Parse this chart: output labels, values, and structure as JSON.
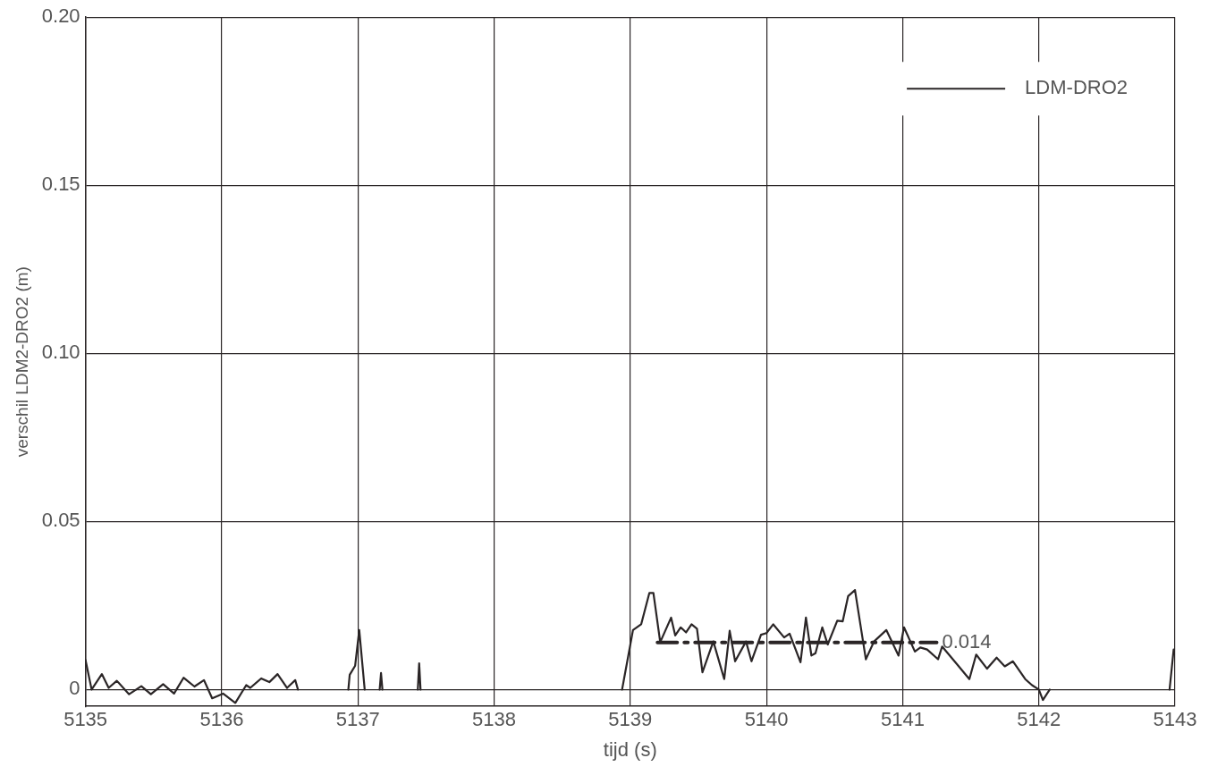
{
  "chart_data": {
    "type": "line",
    "xlabel": "tijd (s)",
    "ylabel": "verschil LDM2-DRO2 (m)",
    "xlim": [
      5135,
      5143
    ],
    "xticks": [
      5135,
      5136,
      5137,
      5138,
      5139,
      5140,
      5141,
      5142,
      5143
    ],
    "ylim": [
      -0.005,
      0.2
    ],
    "yticks": [
      0,
      0.05,
      {
        "value": 0.1,
        "label": "0.10"
      },
      0.15,
      {
        "value": 0.2,
        "label": "0.20"
      }
    ],
    "grid": true,
    "legend": "top right",
    "marker": "none",
    "series": [
      {
        "name": "LDM-DRO2",
        "color": "#2a2526",
        "line_style": "solid",
        "x": [
          5135.0,
          5135.045,
          5135.12,
          5135.17,
          5135.23,
          5135.32,
          5135.41,
          5135.48,
          5135.57,
          5135.65,
          5135.72,
          5135.8,
          5135.87,
          5135.93,
          5136.01,
          5136.1,
          5136.18,
          5136.21,
          5136.29,
          5136.35,
          5136.41,
          5136.48,
          5136.54,
          5136.56,
          5136.75,
          5136.93,
          5136.94,
          5136.98,
          5137.01,
          5137.05,
          5137.1,
          5137.16,
          5137.17,
          5137.18,
          5137.3,
          5137.44,
          5137.45,
          5137.46,
          5138.2,
          5138.94,
          5139.02,
          5139.08,
          5139.14,
          5139.17,
          5139.22,
          5139.3,
          5139.33,
          5139.37,
          5139.41,
          5139.45,
          5139.49,
          5139.53,
          5139.61,
          5139.69,
          5139.73,
          5139.77,
          5139.85,
          5139.89,
          5139.96,
          5140.0,
          5140.05,
          5140.13,
          5140.17,
          5140.25,
          5140.29,
          5140.33,
          5140.36,
          5140.41,
          5140.45,
          5140.52,
          5140.56,
          5140.6,
          5140.65,
          5140.73,
          5140.79,
          5140.88,
          5140.97,
          5141.01,
          5141.09,
          5141.13,
          5141.18,
          5141.26,
          5141.29,
          5141.4,
          5141.49,
          5141.54,
          5141.62,
          5141.69,
          5141.75,
          5141.81,
          5141.9,
          5141.95,
          5142.0,
          5142.03,
          5142.08,
          5142.5,
          5142.96,
          5142.99
        ],
        "values": [
          0.0088,
          0,
          0.0046,
          0.0005,
          0.0026,
          -0.0014,
          0.001,
          -0.0014,
          0.0016,
          -0.0012,
          0.0035,
          0.0009,
          0.0028,
          -0.0026,
          -0.0012,
          -0.004,
          0.0013,
          0.0005,
          0.0033,
          0.0022,
          0.0046,
          0.0005,
          0.0028,
          0,
          null,
          0,
          0.0044,
          0.0071,
          0.0177,
          0,
          null,
          0,
          0.0049,
          0,
          null,
          0,
          0.0078,
          0,
          null,
          0,
          0.0177,
          0.0194,
          0.0287,
          0.0287,
          0.0141,
          0.0214,
          0.0161,
          0.0185,
          0.017,
          0.0194,
          0.0181,
          0.0051,
          0.0143,
          0.0031,
          0.0175,
          0.0084,
          0.0143,
          0.0084,
          0.0163,
          0.0168,
          0.0194,
          0.0155,
          0.0166,
          0.0081,
          0.0214,
          0.0101,
          0.0108,
          0.0185,
          0.0134,
          0.0205,
          0.0203,
          0.0278,
          0.0296,
          0.009,
          0.0143,
          0.0177,
          0.0101,
          0.0185,
          0.0113,
          0.0125,
          0.0119,
          0.009,
          0.0128,
          0.0075,
          0.0031,
          0.0104,
          0.0062,
          0.0095,
          0.0069,
          0.0084,
          0.0031,
          0.0013,
          0,
          -0.0031,
          0,
          null,
          0,
          0.0119
        ]
      },
      {
        "color": "#2a2526",
        "line_style": "dashed",
        "x": [
          5139.2,
          5141.25
        ],
        "values": [
          0.014,
          0.014
        ]
      }
    ],
    "annotations": [
      {
        "text": "0.014",
        "x": 5141.25,
        "y": 0.014
      }
    ]
  }
}
